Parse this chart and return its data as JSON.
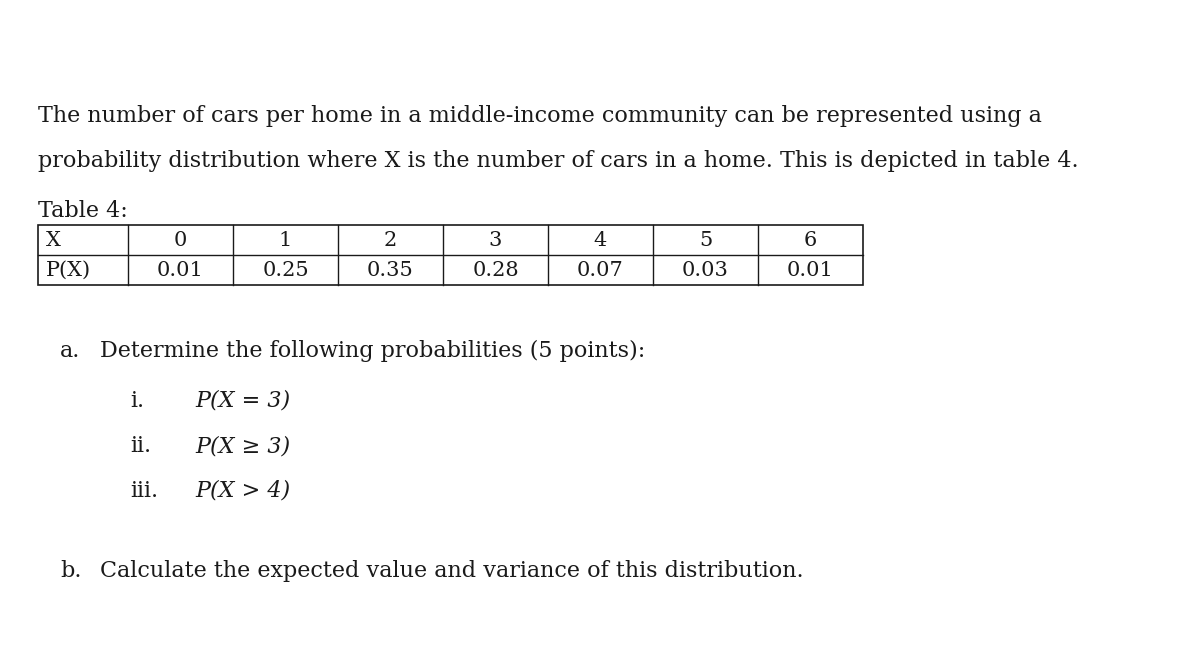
{
  "background_color": "#ffffff",
  "intro_text_line1": "The number of cars per home in a middle-income community can be represented using a",
  "intro_text_line2": "probability distribution where X is the number of cars in a home. This is depicted in table 4.",
  "table_label": "Table 4:",
  "table_headers": [
    "X",
    "0",
    "1",
    "2",
    "3",
    "4",
    "5",
    "6"
  ],
  "table_row_label": "P(X)",
  "table_values": [
    "0.01",
    "0.25",
    "0.35",
    "0.28",
    "0.07",
    "0.03",
    "0.01"
  ],
  "part_a_label": "a.",
  "part_a_text": "Determine the following probabilities (5 points):",
  "sub_items": [
    {
      "label": "i.",
      "text": "P(X = 3)"
    },
    {
      "label": "ii.",
      "text": "P(X ≥ 3)"
    },
    {
      "label": "iii.",
      "text": "P(X > 4)"
    }
  ],
  "part_b_label": "b.",
  "part_b_text": "Calculate the expected value and variance of this distribution.",
  "font_size_body": 16,
  "font_size_table": 15,
  "font_family": "DejaVu Serif",
  "text_color": "#1a1a1a"
}
